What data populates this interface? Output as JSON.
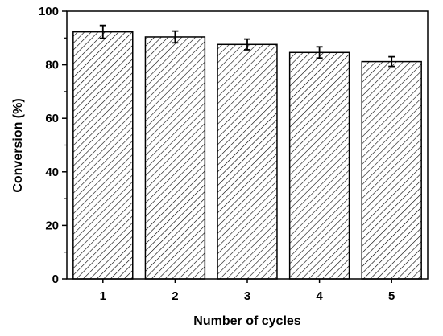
{
  "chart_data": {
    "type": "bar",
    "categories": [
      "1",
      "2",
      "3",
      "4",
      "5"
    ],
    "values": [
      92.3,
      90.4,
      87.6,
      84.6,
      81.2
    ],
    "errors": [
      2.4,
      2.2,
      2.0,
      2.1,
      1.8
    ],
    "xlabel": "Number of cycles",
    "ylabel": "Conversion (%)",
    "ylim": [
      0,
      100
    ],
    "yticks": [
      "0",
      "20",
      "40",
      "60",
      "80",
      "100"
    ],
    "bar_fill": "hatched",
    "grid": false,
    "legend": "none",
    "colors": {
      "bar_edge": "#000000",
      "hatch": "#000000",
      "background": "#ffffff"
    }
  }
}
